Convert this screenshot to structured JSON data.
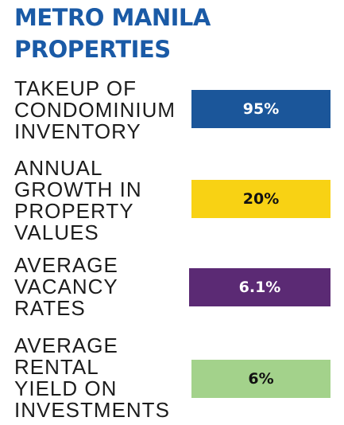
{
  "colors": {
    "title": "#1a5aa6",
    "bar_blue": "#1b569a",
    "bar_yellow": "#f8d214",
    "bar_purple": "#5b2a74",
    "bar_green": "#a3d28b",
    "text_on_dark": "#ffffff",
    "text_on_light": "#111111"
  },
  "title": {
    "line1": "METRO MANILA",
    "line2": "PROPERTIES"
  },
  "stats": [
    {
      "label_lines": [
        "TAKEUP OF",
        "CONDOMINIUM",
        "INVENTORY"
      ],
      "value": "95%",
      "color": "#1b569a",
      "text_color": "#ffffff"
    },
    {
      "label_lines": [
        "ANNUAL",
        "GROWTH IN",
        "PROPERTY",
        "VALUES"
      ],
      "value": "20%",
      "color": "#f8d214",
      "text_color": "#111111"
    },
    {
      "label_lines": [
        "AVERAGE",
        "VACANCY",
        "RATES"
      ],
      "value": "6.1%",
      "color": "#5b2a74",
      "text_color": "#ffffff"
    },
    {
      "label_lines": [
        "AVERAGE",
        "RENTAL",
        "YIELD ON",
        "INVESTMENTS"
      ],
      "value": "6%",
      "color": "#a3d28b",
      "text_color": "#111111"
    }
  ]
}
